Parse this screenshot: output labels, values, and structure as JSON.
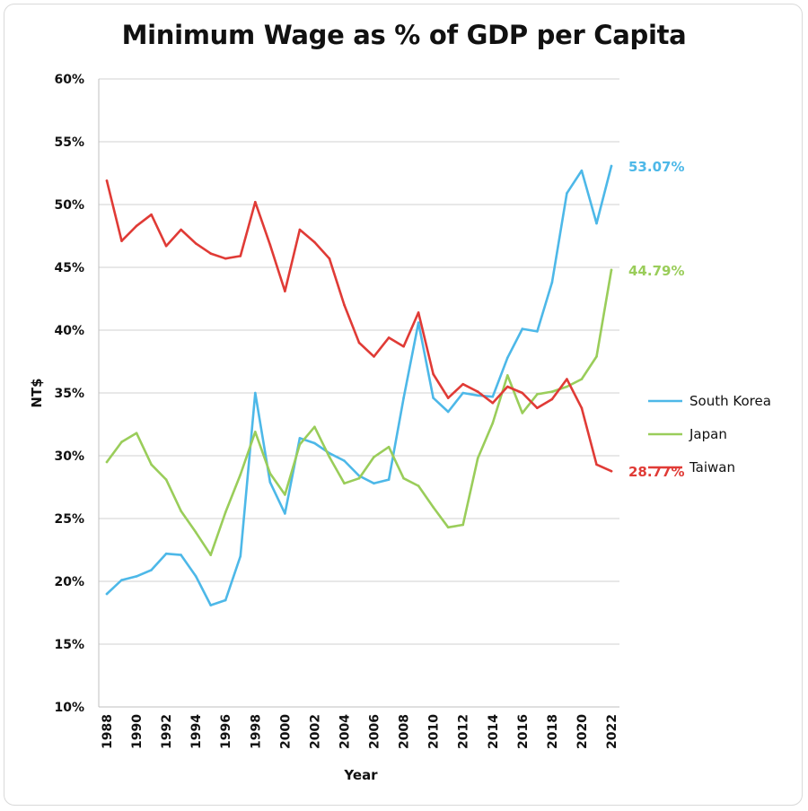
{
  "chart_data": {
    "type": "line",
    "title": "Minimum Wage as % of GDP per Capita",
    "xlabel": "Year",
    "ylabel": "NT$",
    "ylim": [
      10,
      60
    ],
    "yticks": [
      10,
      15,
      20,
      25,
      30,
      35,
      40,
      45,
      50,
      55,
      60
    ],
    "ytick_labels": [
      "10%",
      "15%",
      "20%",
      "25%",
      "30%",
      "35%",
      "40%",
      "45%",
      "50%",
      "55%",
      "60%"
    ],
    "x": [
      1988,
      1989,
      1990,
      1991,
      1992,
      1993,
      1994,
      1995,
      1996,
      1997,
      1998,
      1999,
      2000,
      2001,
      2002,
      2003,
      2004,
      2005,
      2006,
      2007,
      2008,
      2009,
      2010,
      2011,
      2012,
      2013,
      2014,
      2015,
      2016,
      2017,
      2018,
      2019,
      2020,
      2021,
      2022
    ],
    "xtick_labels": [
      "1988",
      "1990",
      "1992",
      "1994",
      "1996",
      "1998",
      "2000",
      "2002",
      "2004",
      "2006",
      "2008",
      "2010",
      "2012",
      "2014",
      "2016",
      "2018",
      "2020",
      "2022"
    ],
    "grid": true,
    "legend_position": "right",
    "series": [
      {
        "name": "South Korea",
        "color": "#4db8e8",
        "end_label": "53.07%",
        "values": [
          19.0,
          20.1,
          20.4,
          20.9,
          22.2,
          22.1,
          20.4,
          18.1,
          18.5,
          22.0,
          35.0,
          27.9,
          25.4,
          31.4,
          31.0,
          30.2,
          29.6,
          28.4,
          27.8,
          28.1,
          34.6,
          40.6,
          34.6,
          33.5,
          35.0,
          34.8,
          34.7,
          37.8,
          40.1,
          39.9,
          43.8,
          50.9,
          52.7,
          48.5,
          53.07
        ]
      },
      {
        "name": "Japan",
        "color": "#9acd5a",
        "end_label": "44.79%",
        "values": [
          29.5,
          31.1,
          31.8,
          29.3,
          28.1,
          25.6,
          23.9,
          22.1,
          25.5,
          28.5,
          31.9,
          28.6,
          26.9,
          30.9,
          32.3,
          29.9,
          27.8,
          28.2,
          29.9,
          30.7,
          28.2,
          27.6,
          25.9,
          24.3,
          24.5,
          29.8,
          32.6,
          36.4,
          33.4,
          34.9,
          35.1,
          35.5,
          36.1,
          37.9,
          44.79
        ]
      },
      {
        "name": "Taiwan",
        "color": "#e03b36",
        "end_label": "28.77%",
        "values": [
          51.9,
          47.1,
          48.3,
          49.2,
          46.7,
          48.0,
          46.9,
          46.1,
          45.7,
          45.9,
          50.2,
          46.8,
          43.1,
          48.0,
          47.0,
          45.7,
          42.0,
          39.0,
          37.9,
          39.4,
          38.7,
          41.4,
          36.5,
          34.6,
          35.7,
          35.1,
          34.2,
          35.5,
          35.0,
          33.8,
          34.5,
          36.1,
          33.8,
          29.3,
          28.77
        ]
      }
    ]
  }
}
